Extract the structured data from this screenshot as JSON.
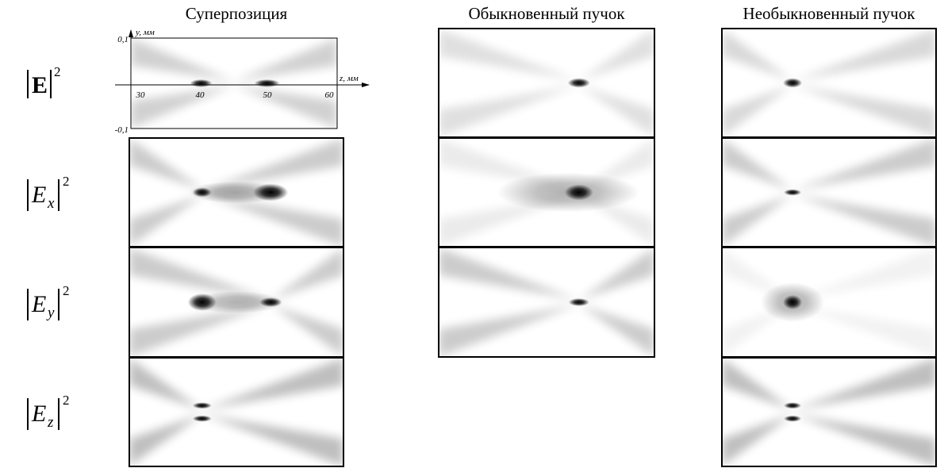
{
  "columns": [
    "Суперпозиция",
    "Обыкновенный пучок",
    "Необыкновенный пучок"
  ],
  "rows": [
    {
      "symbol": "E",
      "subscript": null,
      "power": "2"
    },
    {
      "symbol": "E",
      "subscript": "x",
      "power": "2"
    },
    {
      "symbol": "E",
      "subscript": "y",
      "power": "2"
    },
    {
      "symbol": "E",
      "subscript": "z",
      "power": "2"
    }
  ],
  "axes": {
    "y_label": "y, мм",
    "z_label": "z, мм",
    "y_ticks": [
      "0,1",
      "-0,1"
    ],
    "z_ticks": [
      "30",
      "40",
      "50",
      "60"
    ]
  }
}
